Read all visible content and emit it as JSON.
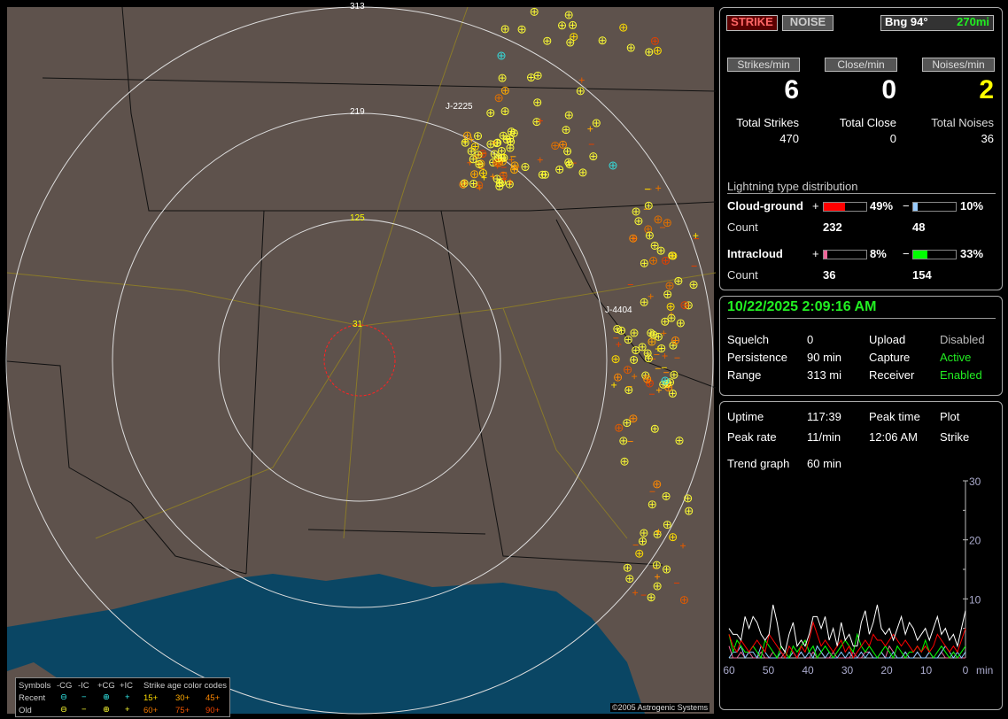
{
  "map": {
    "range_labels": [
      "31",
      "125",
      "219",
      "313"
    ],
    "storm_labels": [
      "J-2225",
      "J-4404"
    ],
    "copyright": "©2005 Astrogenic Systems",
    "legend": {
      "header": [
        "Symbols",
        "-CG",
        "-IC",
        "+CG",
        "+IC",
        "Strike age color codes"
      ],
      "rows": [
        {
          "label": "Recent",
          "ages": [
            "15+",
            "30+",
            "45+"
          ]
        },
        {
          "label": "Old",
          "ages": [
            "60+",
            "75+",
            "90+"
          ]
        }
      ]
    },
    "colors": {
      "land": "#5e524c",
      "water": "#0a4664",
      "recent": "#33e0e0",
      "old": "#ffff33",
      "age": [
        "#ffdd00",
        "#ffaa00",
        "#ff8800",
        "#e07000",
        "#e05a00",
        "#e04000"
      ]
    }
  },
  "header": {
    "strike_button": "STRIKE",
    "noise_button": "NOISE",
    "bearing": "Bng 94°",
    "distance": "270mi"
  },
  "rates": [
    {
      "label": "Strikes/min",
      "value": "6",
      "total_label": "Total Strikes",
      "total": "470"
    },
    {
      "label": "Close/min",
      "value": "0",
      "total_label": "Total Close",
      "total": "0"
    },
    {
      "label": "Noises/min",
      "value": "2",
      "total_label": "Total Noises",
      "total": "36"
    }
  ],
  "distribution": {
    "title": "Lightning type distribution",
    "count_label": "Count",
    "cg": {
      "label": "Cloud-ground",
      "pos_pct": 49,
      "pos_text": "49%",
      "neg_pct": 10,
      "neg_text": "10%",
      "pos_count": "232",
      "neg_count": "48"
    },
    "ic": {
      "label": "Intracloud",
      "pos_pct": 8,
      "pos_text": "8%",
      "neg_pct": 33,
      "neg_text": "33%",
      "pos_count": "36",
      "neg_count": "154"
    },
    "colors": {
      "cg_pos": "#ff0000",
      "cg_neg": "#99ccff",
      "ic_pos": "#ee6699",
      "ic_neg": "#00ff00"
    }
  },
  "status": {
    "datetime": "10/22/2025 2:09:16 AM",
    "left": [
      [
        "Squelch",
        "0"
      ],
      [
        "Persistence",
        "90 min"
      ],
      [
        "Range",
        "313 mi"
      ]
    ],
    "right": [
      [
        "Upload",
        "Disabled"
      ],
      [
        "Capture",
        "Active"
      ],
      [
        "Receiver",
        "Enabled"
      ]
    ]
  },
  "stats": {
    "uptime_label": "Uptime",
    "uptime": "117:39",
    "peak_time_label": "Peak time",
    "plot_label": "Plot",
    "peak_rate_label": "Peak rate",
    "peak_rate": "11/min",
    "peak_time": "12:06 AM",
    "plot": "Strike",
    "trend_label": "Trend graph",
    "trend": "60 min"
  },
  "chart_data": {
    "type": "line",
    "x_ticks": [
      "60",
      "50",
      "40",
      "30",
      "20",
      "10",
      "0"
    ],
    "x_unit": "min",
    "y_ticks": [
      "10",
      "20",
      "30"
    ],
    "ylim": [
      0,
      30
    ],
    "xlim": [
      60,
      0
    ],
    "series": [
      {
        "color": "#ffffff",
        "values": [
          5,
          4,
          4,
          3,
          7,
          5,
          7,
          6,
          4,
          3,
          4,
          9,
          6,
          2,
          1,
          4,
          6,
          2,
          3,
          2,
          4,
          7,
          7,
          5,
          7,
          3,
          5,
          2,
          6,
          3,
          4,
          2,
          2,
          6,
          8,
          4,
          6,
          9,
          5,
          4,
          5,
          3,
          5,
          7,
          4,
          6,
          5,
          3,
          4,
          5,
          3,
          5,
          7,
          4,
          5,
          3,
          4,
          2,
          5,
          8
        ]
      },
      {
        "color": "#ff0000",
        "values": [
          4,
          2,
          1,
          3,
          2,
          1,
          2,
          3,
          2,
          1,
          4,
          3,
          2,
          1,
          0,
          2,
          1,
          0,
          2,
          1,
          3,
          6,
          4,
          2,
          3,
          2,
          1,
          2,
          3,
          1,
          2,
          0,
          1,
          2,
          3,
          2,
          4,
          3,
          3,
          2,
          3,
          4,
          3,
          2,
          3,
          2,
          1,
          2,
          1,
          2,
          1,
          2,
          4,
          3,
          2,
          1,
          2,
          1,
          3,
          5
        ]
      },
      {
        "color": "#00ff00",
        "values": [
          4,
          1,
          3,
          2,
          1,
          1,
          2,
          1,
          0,
          3,
          2,
          1,
          0,
          2,
          1,
          0,
          2,
          1,
          2,
          3,
          1,
          2,
          0,
          1,
          2,
          1,
          0,
          1,
          2,
          3,
          2,
          1,
          4,
          2,
          1,
          2,
          1,
          0,
          1,
          2,
          1,
          0,
          2,
          1,
          0,
          1,
          1,
          2,
          1,
          3,
          1,
          0,
          1,
          2,
          1,
          0,
          1,
          0,
          1,
          2
        ]
      },
      {
        "color": "#88ccff",
        "values": [
          0,
          1,
          1,
          2,
          0,
          1,
          1,
          0,
          2,
          1,
          0,
          0,
          0,
          1,
          0,
          0,
          1,
          0,
          1,
          0,
          1,
          0,
          2,
          1,
          0,
          1,
          0,
          0,
          1,
          0,
          1,
          0,
          0,
          1,
          0,
          1,
          0,
          0,
          1,
          0,
          0,
          1,
          0,
          0,
          1,
          0,
          0,
          1,
          0,
          0,
          1,
          0,
          0,
          1,
          2,
          1,
          0,
          1,
          0,
          1
        ]
      },
      {
        "color": "#ee6699",
        "values": [
          2,
          0,
          0,
          1,
          0,
          1,
          0,
          0,
          1,
          0,
          0,
          1,
          0,
          0,
          1,
          0,
          1,
          0,
          1,
          0,
          0,
          1,
          0,
          1,
          0,
          0,
          1,
          0,
          0,
          0,
          0,
          1,
          0,
          0,
          1,
          1,
          0,
          0,
          1,
          0,
          2,
          1,
          0,
          0,
          1,
          0,
          0,
          1,
          0,
          0,
          1,
          0,
          0,
          1,
          0,
          0,
          1,
          0,
          0,
          0
        ]
      }
    ]
  }
}
